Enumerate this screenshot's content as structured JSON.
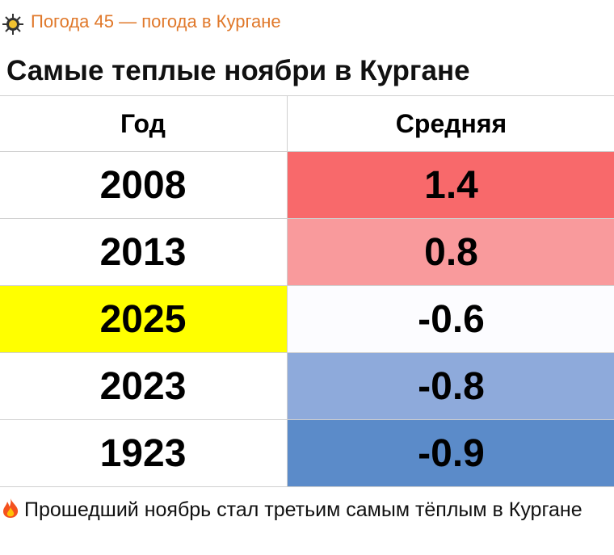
{
  "header": {
    "channel": "Погода 45 — погода в Кургане"
  },
  "table": {
    "title": "Самые теплые ноябри в Кургане",
    "columns": [
      "Год",
      "Средняя"
    ],
    "rows": [
      [
        2008,
        1.4
      ],
      [
        2013,
        0.8
      ],
      [
        2025,
        -0.6
      ],
      [
        2023,
        -0.8
      ],
      [
        1923,
        -0.9
      ]
    ]
  },
  "caption": "Прошедший ноябрь стал третьим самым тёплым в Кургане"
}
